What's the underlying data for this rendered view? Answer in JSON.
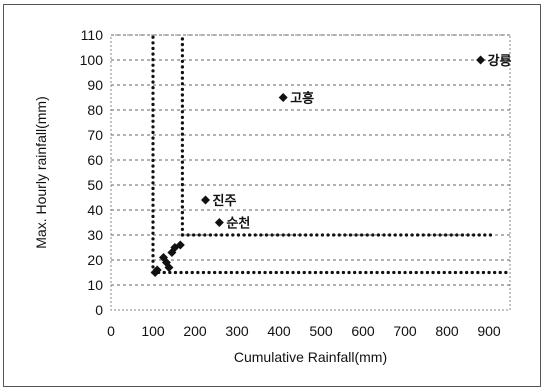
{
  "chart_data": {
    "type": "scatter",
    "title": "",
    "xlabel": "Cumulative Rainfall(mm)",
    "ylabel": "Max. Hourly rainfall(mm)",
    "xlim": [
      0,
      950
    ],
    "ylim": [
      0,
      110
    ],
    "xticks": [
      "0",
      "100",
      "200",
      "300",
      "400",
      "500",
      "600",
      "700",
      "800",
      "900"
    ],
    "yticks": [
      "0",
      "10",
      "20",
      "30",
      "40",
      "50",
      "60",
      "70",
      "80",
      "90",
      "100",
      "110"
    ],
    "grid": true,
    "points": [
      {
        "x": 105,
        "y": 15,
        "label": ""
      },
      {
        "x": 110,
        "y": 16,
        "label": ""
      },
      {
        "x": 125,
        "y": 21,
        "label": ""
      },
      {
        "x": 132,
        "y": 19,
        "label": ""
      },
      {
        "x": 138,
        "y": 17,
        "label": ""
      },
      {
        "x": 145,
        "y": 23,
        "label": ""
      },
      {
        "x": 152,
        "y": 25,
        "label": ""
      },
      {
        "x": 165,
        "y": 26,
        "label": ""
      },
      {
        "x": 225,
        "y": 44,
        "label": "진주"
      },
      {
        "x": 258,
        "y": 35,
        "label": "순천"
      },
      {
        "x": 410,
        "y": 85,
        "label": "고흥"
      },
      {
        "x": 880,
        "y": 100,
        "label": "강릉"
      }
    ],
    "reference_lines": [
      {
        "orientation": "vertical",
        "x": 100,
        "y_from": 15,
        "y_to": 110
      },
      {
        "orientation": "vertical",
        "x": 170,
        "y_from": 30,
        "y_to": 110
      },
      {
        "orientation": "horizontal",
        "y": 30,
        "x_from": 170,
        "x_to": 910
      },
      {
        "orientation": "horizontal",
        "y": 15,
        "x_from": 100,
        "x_to": 950
      }
    ],
    "marker_color": "#111111",
    "reference_line_color": "#111111"
  }
}
